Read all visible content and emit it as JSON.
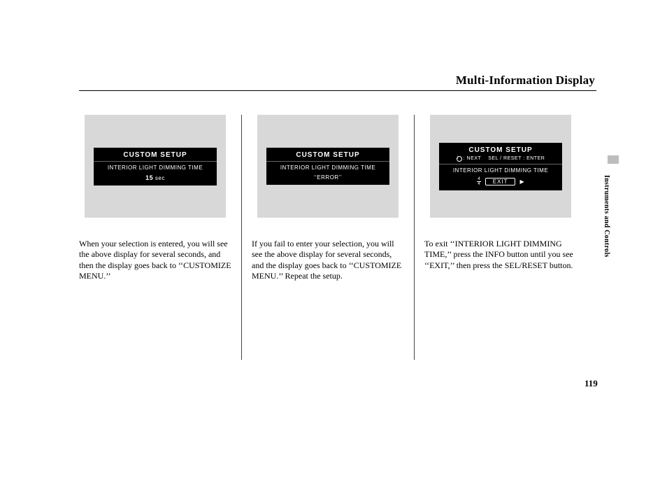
{
  "title": "Multi-Information Display",
  "side_label": "Instruments and Controls",
  "page_number": "119",
  "columns": [
    {
      "lcd": {
        "header": "CUSTOM SETUP",
        "line1": "INTERIOR LIGHT DIMMING TIME",
        "value_bold": "15",
        "value_unit": "sec"
      },
      "text": "When your selection is entered, you will see the above display for several seconds, and then the display goes back to ‘‘CUSTOMIZE MENU.’’"
    },
    {
      "lcd": {
        "header": "CUSTOM SETUP",
        "line1": "INTERIOR LIGHT DIMMING TIME",
        "value_quoted": "‘‘ERROR’’"
      },
      "text": "If you fail to enter your selection, you will see the above display for several seconds, and the display goes back to ‘‘CUSTOMIZE MENU.’’ Repeat the setup."
    },
    {
      "lcd": {
        "header": "CUSTOM SETUP",
        "sub_left": ": NEXT",
        "sub_right": "SEL / RESET : ENTER",
        "line1": "INTERIOR LIGHT DIMMING TIME",
        "frac_top": "4",
        "frac_bot": "4",
        "exit_label": "EXIT",
        "arrow": "▶"
      },
      "text": "To exit ‘‘INTERIOR LIGHT DIMMING TIME,’’ press the INFO button until you see ‘‘EXIT,’’ then press the SEL/RESET button."
    }
  ]
}
